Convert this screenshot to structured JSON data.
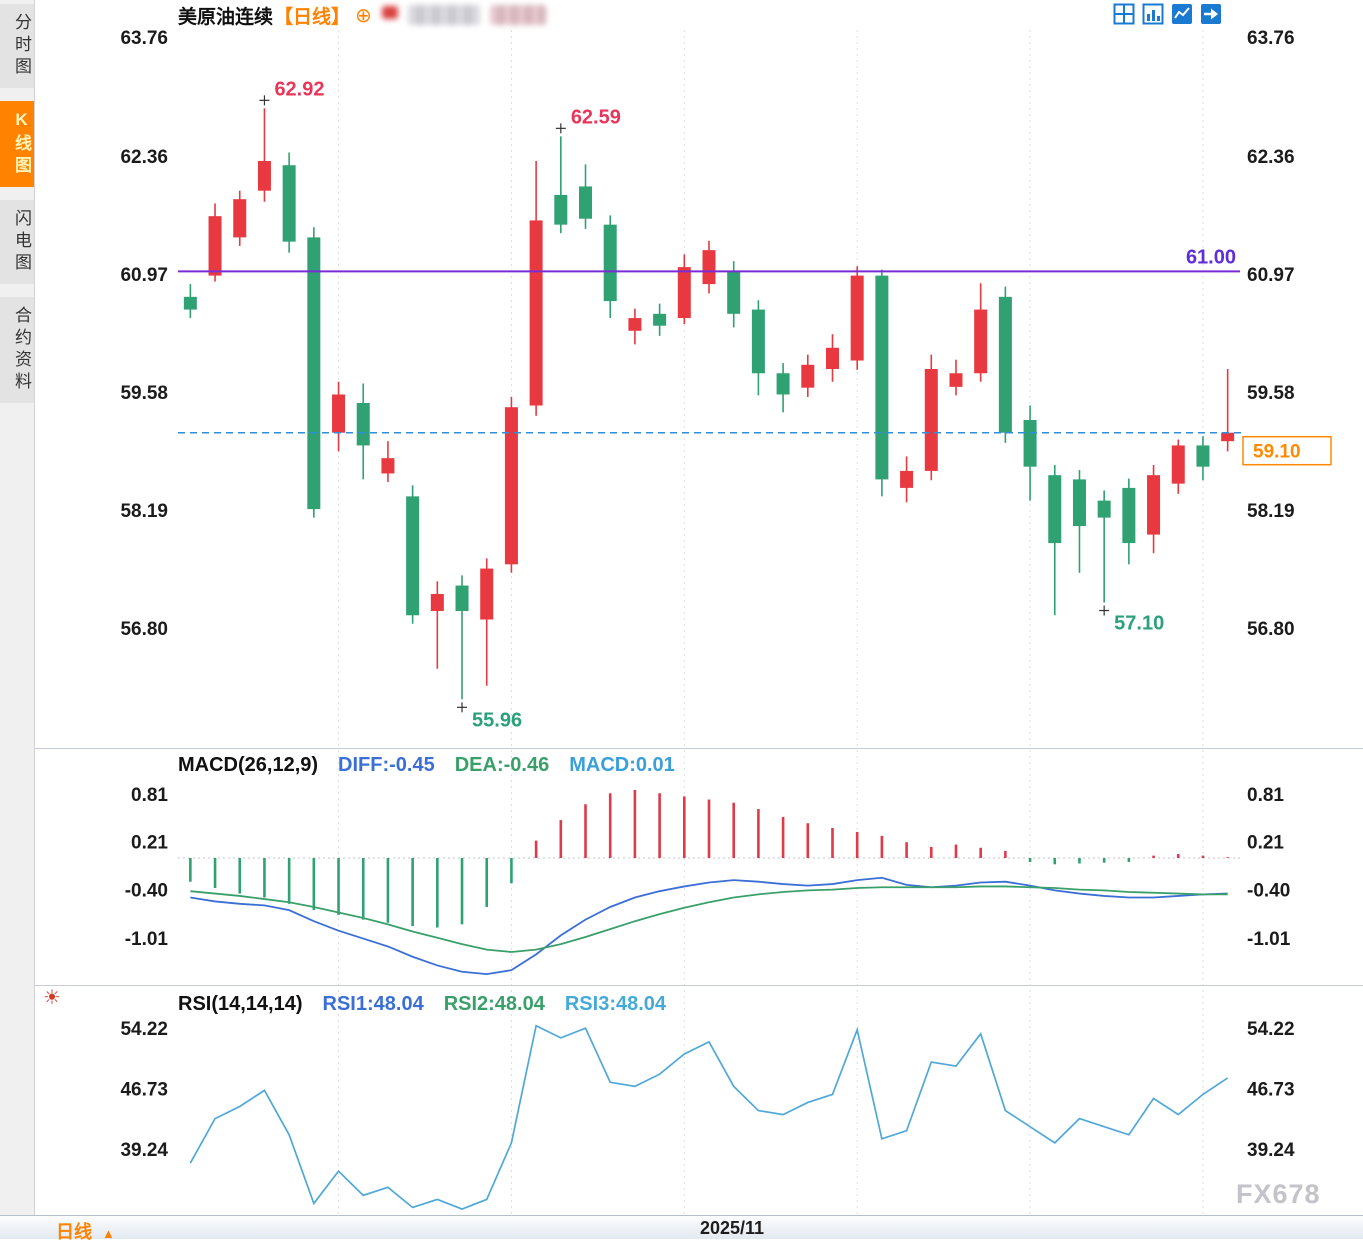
{
  "window": {
    "watermark": "FX678"
  },
  "sidebar": {
    "tabs": [
      {
        "label": "分时图",
        "active": false
      },
      {
        "label": "K线图",
        "active": true
      },
      {
        "label": "闪电图",
        "active": false
      },
      {
        "label": "合约资料",
        "active": false
      }
    ]
  },
  "header": {
    "symbol": "美原油连续",
    "period_tag": "【日线】",
    "plus_icon": "⊕",
    "accent_orange": "#ff8201",
    "icon_blue": "#1a79d0"
  },
  "side_icon": {
    "glyph": "☀"
  },
  "bottom_bar": {
    "period_label": "日线",
    "arrow": "▲",
    "date_label": "2025/11"
  },
  "chart_data": [
    {
      "type": "candlestick",
      "title": "美原油连续【日线】",
      "y_ticks": [
        "63.76",
        "62.36",
        "60.97",
        "59.58",
        "58.19",
        "56.80"
      ],
      "ylim": [
        55.9,
        63.8
      ],
      "up_color": "#e83940",
      "down_color": "#2fa173",
      "candles": [
        [
          60.7,
          60.85,
          60.45,
          60.55
        ],
        [
          60.95,
          61.8,
          60.88,
          61.65
        ],
        [
          61.4,
          61.95,
          61.3,
          61.85
        ],
        [
          61.95,
          62.92,
          61.82,
          62.3
        ],
        [
          62.25,
          62.4,
          61.22,
          61.35
        ],
        [
          61.4,
          61.52,
          58.1,
          58.2
        ],
        [
          59.1,
          59.7,
          58.88,
          59.55
        ],
        [
          59.45,
          59.68,
          58.55,
          58.95
        ],
        [
          58.62,
          59.0,
          58.52,
          58.8
        ],
        [
          58.35,
          58.48,
          56.85,
          56.95
        ],
        [
          57.0,
          57.35,
          56.32,
          57.2
        ],
        [
          57.3,
          57.42,
          55.96,
          57.0
        ],
        [
          56.9,
          57.62,
          56.12,
          57.5
        ],
        [
          57.55,
          59.52,
          57.45,
          59.4
        ],
        [
          59.42,
          62.3,
          59.3,
          61.6
        ],
        [
          61.9,
          62.59,
          61.45,
          61.55
        ],
        [
          62.0,
          62.26,
          61.5,
          61.62
        ],
        [
          61.55,
          61.66,
          60.45,
          60.65
        ],
        [
          60.3,
          60.56,
          60.14,
          60.45
        ],
        [
          60.5,
          60.62,
          60.24,
          60.36
        ],
        [
          60.45,
          61.2,
          60.38,
          61.05
        ],
        [
          60.85,
          61.36,
          60.74,
          61.25
        ],
        [
          61.0,
          61.12,
          60.34,
          60.5
        ],
        [
          60.55,
          60.66,
          59.54,
          59.8
        ],
        [
          59.8,
          59.92,
          59.34,
          59.55
        ],
        [
          59.63,
          60.02,
          59.52,
          59.9
        ],
        [
          59.85,
          60.26,
          59.7,
          60.1
        ],
        [
          59.95,
          61.06,
          59.84,
          60.95
        ],
        [
          60.95,
          61.02,
          58.35,
          58.55
        ],
        [
          58.45,
          58.82,
          58.28,
          58.65
        ],
        [
          58.65,
          60.02,
          58.54,
          59.85
        ],
        [
          59.64,
          59.96,
          59.54,
          59.8
        ],
        [
          59.8,
          60.86,
          59.7,
          60.55
        ],
        [
          60.7,
          60.82,
          58.98,
          59.1
        ],
        [
          59.25,
          59.42,
          58.3,
          58.7
        ],
        [
          58.6,
          58.72,
          56.95,
          57.8
        ],
        [
          58.55,
          58.66,
          57.45,
          58.0
        ],
        [
          58.3,
          58.42,
          57.1,
          58.1
        ],
        [
          58.45,
          58.56,
          57.55,
          57.8
        ],
        [
          57.9,
          58.72,
          57.68,
          58.6
        ],
        [
          58.5,
          59.02,
          58.38,
          58.95
        ],
        [
          58.95,
          59.06,
          58.54,
          58.7
        ],
        [
          59.0,
          59.85,
          58.88,
          59.1
        ]
      ],
      "hline_solid": {
        "value": 61.0,
        "label": "61.00",
        "line_color": "#7a2bd6",
        "label_color": "#5f2ddb"
      },
      "current_price": {
        "value": 59.1,
        "label": "59.10",
        "line_color": "#2f8fdd",
        "box_color": "#ff8a00"
      },
      "annotations": [
        {
          "text": "62.92",
          "index": 3,
          "anchor": "high",
          "color": "#e8365a"
        },
        {
          "text": "62.59",
          "index": 15,
          "anchor": "high",
          "color": "#e8365a"
        },
        {
          "text": "55.96",
          "index": 11,
          "anchor": "low",
          "color": "#2aa17c"
        },
        {
          "text": "57.10",
          "index": 37,
          "anchor": "low",
          "color": "#2aa17c"
        }
      ]
    },
    {
      "type": "bar",
      "label": "MACD(26,12,9)",
      "legend": [
        {
          "text": "DIFF:-0.45",
          "color": "#3b6fd6"
        },
        {
          "text": "DEA:-0.46",
          "color": "#3aa06a"
        },
        {
          "text": "MACD:0.01",
          "color": "#3b9fd8"
        }
      ],
      "y_ticks": [
        "0.81",
        "0.21",
        "-0.40",
        "-1.01"
      ],
      "hist_up_color": "#e0394a",
      "hist_down_color": "#2fa173",
      "diff_color": "#3b6fd6",
      "dea_color": "#3aa06a",
      "histogram": [
        -0.3,
        -0.38,
        -0.45,
        -0.5,
        -0.58,
        -0.66,
        -0.72,
        -0.78,
        -0.82,
        -0.86,
        -0.88,
        -0.84,
        -0.62,
        -0.32,
        0.22,
        0.48,
        0.68,
        0.82,
        0.86,
        0.82,
        0.78,
        0.74,
        0.7,
        0.62,
        0.52,
        0.44,
        0.38,
        0.33,
        0.28,
        0.2,
        0.14,
        0.17,
        0.13,
        0.09,
        -0.05,
        -0.08,
        -0.07,
        -0.06,
        -0.05,
        0.03,
        0.05,
        0.03,
        0.01
      ],
      "diff_line": [
        -0.5,
        -0.55,
        -0.58,
        -0.6,
        -0.66,
        -0.8,
        -0.92,
        -1.02,
        -1.12,
        -1.25,
        -1.36,
        -1.44,
        -1.47,
        -1.42,
        -1.22,
        -0.98,
        -0.78,
        -0.62,
        -0.5,
        -0.42,
        -0.36,
        -0.31,
        -0.28,
        -0.3,
        -0.33,
        -0.35,
        -0.33,
        -0.28,
        -0.25,
        -0.34,
        -0.37,
        -0.35,
        -0.31,
        -0.3,
        -0.35,
        -0.41,
        -0.45,
        -0.48,
        -0.5,
        -0.5,
        -0.48,
        -0.46,
        -0.45
      ],
      "dea_line": [
        -0.42,
        -0.45,
        -0.48,
        -0.52,
        -0.56,
        -0.62,
        -0.69,
        -0.76,
        -0.84,
        -0.93,
        -1.01,
        -1.09,
        -1.16,
        -1.19,
        -1.16,
        -1.09,
        -1.0,
        -0.9,
        -0.8,
        -0.71,
        -0.63,
        -0.56,
        -0.5,
        -0.46,
        -0.43,
        -0.41,
        -0.4,
        -0.38,
        -0.37,
        -0.37,
        -0.37,
        -0.37,
        -0.36,
        -0.36,
        -0.37,
        -0.38,
        -0.4,
        -0.41,
        -0.43,
        -0.44,
        -0.45,
        -0.46,
        -0.46
      ]
    },
    {
      "type": "line",
      "label": "RSI(14,14,14)",
      "legend": [
        {
          "text": "RSI1:48.04",
          "color": "#3b6fd6"
        },
        {
          "text": "RSI2:48.04",
          "color": "#3aa06a"
        },
        {
          "text": "RSI3:48.04",
          "color": "#45aad8"
        }
      ],
      "y_ticks": [
        "54.22",
        "46.73",
        "39.24"
      ],
      "line_color": "#4fa8d8",
      "rsi": [
        37.5,
        43.0,
        44.5,
        46.5,
        41.0,
        32.5,
        36.5,
        33.5,
        34.5,
        32.0,
        33.0,
        31.8,
        33.0,
        40.0,
        54.5,
        53.0,
        54.2,
        47.5,
        47.0,
        48.5,
        51.0,
        52.5,
        47.0,
        44.0,
        43.5,
        45.0,
        46.0,
        54.0,
        40.5,
        41.5,
        50.0,
        49.5,
        53.5,
        44.0,
        42.0,
        40.0,
        43.0,
        42.0,
        41.0,
        45.5,
        43.5,
        46.0,
        48.04
      ]
    }
  ]
}
